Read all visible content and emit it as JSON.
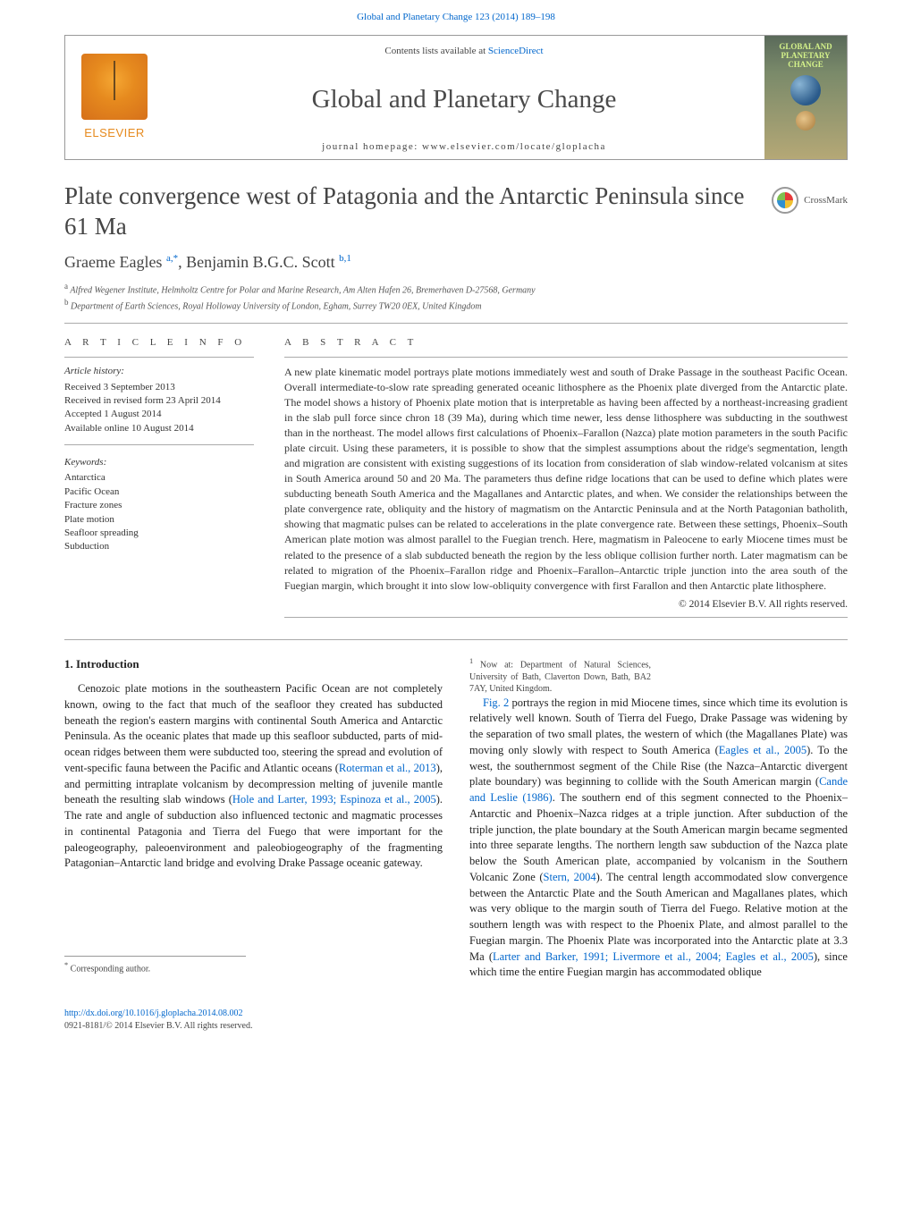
{
  "banner": {
    "citation": "Global and Planetary Change 123 (2014) 189–198"
  },
  "header": {
    "publisher": "ELSEVIER",
    "contents_prefix": "Contents lists available at ",
    "contents_link": "ScienceDirect",
    "journal_title": "Global and Planetary Change",
    "homepage_label": "journal homepage: www.elsevier.com/locate/gloplacha",
    "cover_title": "GLOBAL AND PLANETARY CHANGE"
  },
  "crossmark": {
    "label": "CrossMark"
  },
  "article": {
    "title": "Plate convergence west of Patagonia and the Antarctic Peninsula since 61 Ma",
    "authors_html": "Graeme Eagles <sup>a,*</sup>, Benjamin B.G.C. Scott <sup>b,1</sup>",
    "authors_plain_0": "Graeme Eagles ",
    "authors_sup_0": "a,*",
    "authors_plain_1": ", Benjamin B.G.C. Scott ",
    "authors_sup_1": "b,1",
    "affil_a_sup": "a",
    "affil_a": " Alfred Wegener Institute, Helmholtz Centre for Polar and Marine Research, Am Alten Hafen 26, Bremerhaven D-27568, Germany",
    "affil_b_sup": "b",
    "affil_b": " Department of Earth Sciences, Royal Holloway University of London, Egham, Surrey TW20 0EX, United Kingdom"
  },
  "info": {
    "heading": "A R T I C L E   I N F O",
    "history_heading": "Article history:",
    "history": [
      "Received 3 September 2013",
      "Received in revised form 23 April 2014",
      "Accepted 1 August 2014",
      "Available online 10 August 2014"
    ],
    "keywords_heading": "Keywords:",
    "keywords": [
      "Antarctica",
      "Pacific Ocean",
      "Fracture zones",
      "Plate motion",
      "Seafloor spreading",
      "Subduction"
    ]
  },
  "abstract": {
    "heading": "A B S T R A C T",
    "text": "A new plate kinematic model portrays plate motions immediately west and south of Drake Passage in the southeast Pacific Ocean. Overall intermediate-to-slow rate spreading generated oceanic lithosphere as the Phoenix plate diverged from the Antarctic plate. The model shows a history of Phoenix plate motion that is interpretable as having been affected by a northeast-increasing gradient in the slab pull force since chron 18 (39 Ma), during which time newer, less dense lithosphere was subducting in the southwest than in the northeast. The model allows first calculations of Phoenix–Farallon (Nazca) plate motion parameters in the south Pacific plate circuit. Using these parameters, it is possible to show that the simplest assumptions about the ridge's segmentation, length and migration are consistent with existing suggestions of its location from consideration of slab window-related volcanism at sites in South America around 50 and 20 Ma. The parameters thus define ridge locations that can be used to define which plates were subducting beneath South America and the Magallanes and Antarctic plates, and when. We consider the relationships between the plate convergence rate, obliquity and the history of magmatism on the Antarctic Peninsula and at the North Patagonian batholith, showing that magmatic pulses can be related to accelerations in the plate convergence rate. Between these settings, Phoenix–South American plate motion was almost parallel to the Fuegian trench. Here, magmatism in Paleocene to early Miocene times must be related to the presence of a slab subducted beneath the region by the less oblique collision further north. Later magmatism can be related to migration of the Phoenix–Farallon ridge and Phoenix–Farallon–Antarctic triple junction into the area south of the Fuegian margin, which brought it into slow low-obliquity convergence with first Farallon and then Antarctic plate lithosphere.",
    "copyright": "© 2014 Elsevier B.V. All rights reserved."
  },
  "intro": {
    "heading": "1. Introduction",
    "p1_a": "Cenozoic plate motions in the southeastern Pacific Ocean are not completely known, owing to the fact that much of the seafloor they created has subducted beneath the region's eastern margins with continental South America and Antarctic Peninsula. As the oceanic plates that made up this seafloor subducted, parts of mid-ocean ridges between them were subducted too, steering the spread and evolution of vent-specific fauna between the Pacific and Atlantic oceans (",
    "p1_c1": "Roterman et al., 2013",
    "p1_b": "), and permitting intraplate volcanism by decompression melting of juvenile mantle beneath the resulting slab windows (",
    "p1_c2": "Hole and Larter, 1993; Espinoza et al., 2005",
    "p1_c": "). The rate and angle of subduction also influenced tectonic and magmatic processes in continental Patagonia and Tierra del Fuego that were important for the paleogeography, paleoenvironment and paleobiogeography of the fragmenting Patagonian–Antarctic land bridge and evolving Drake Passage oceanic gateway.",
    "p2_a": "Fig. 2",
    "p2_b": " portrays the region in mid Miocene times, since which time its evolution is relatively well known. South of Tierra del Fuego, Drake Passage was widening by the separation of two small plates, the western of which (the Magallanes Plate) was moving only slowly with respect to South America (",
    "p2_c1": "Eagles et al., 2005",
    "p2_c": "). To the west, the southernmost segment of the Chile Rise (the Nazca–Antarctic divergent plate boundary) was beginning to collide with the South American margin (",
    "p2_c2": "Cande and Leslie (1986)",
    "p2_d": ". The southern end of this segment connected to the Phoenix–Antarctic and Phoenix–Nazca ridges at a triple junction. After subduction of the triple junction, the plate boundary at the South American margin became segmented into three separate lengths. The northern length saw subduction of the Nazca plate below the South American plate, accompanied by volcanism in the Southern Volcanic Zone (",
    "p2_c3": "Stern, 2004",
    "p2_e": "). The central length accommodated slow convergence between the Antarctic Plate and the South American and Magallanes plates, which was very oblique to the margin south of Tierra del Fuego. Relative motion at the southern length was with respect to the Phoenix Plate, and almost parallel to the Fuegian margin. The Phoenix Plate was incorporated into the Antarctic plate at 3.3 Ma (",
    "p2_c4": "Larter and Barker, 1991; Livermore et al., 2004; Eagles et al., 2005",
    "p2_f": "), since which time the entire Fuegian margin has accommodated oblique"
  },
  "corr": {
    "star": "*",
    "star_text": " Corresponding author.",
    "one": "1",
    "one_text": " Now at: Department of Natural Sciences, University of Bath, Claverton Down, Bath, BA2 7AY, United Kingdom."
  },
  "footer": {
    "doi": "http://dx.doi.org/10.1016/j.gloplacha.2014.08.002",
    "issn": "0921-8181/© 2014 Elsevier B.V. All rights reserved."
  }
}
